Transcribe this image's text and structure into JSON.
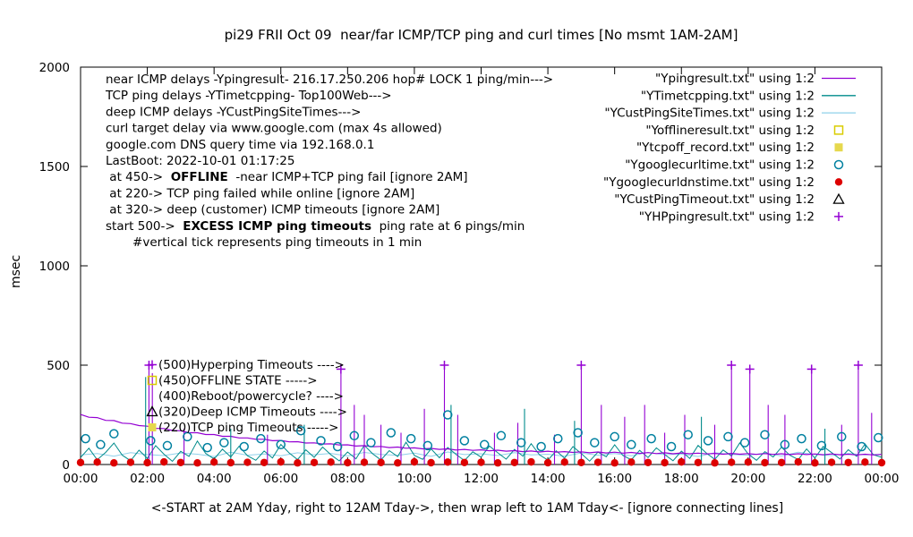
{
  "chart_data": {
    "type": "line",
    "title": "pi29 FRII Oct 09  near/far ICMP/TCP ping and curl times [No msmt 1AM-2AM]",
    "xlabel": "<-START at 2AM Yday, right to 12AM Tday->, then wrap left to 1AM Tday<- [ignore connecting lines]",
    "ylabel": "msec",
    "ylim": [
      0,
      2000
    ],
    "yticks": [
      0,
      500,
      1000,
      1500,
      2000
    ],
    "xlim_hours": [
      0,
      24
    ],
    "xticks_hours": [
      0,
      2,
      4,
      6,
      8,
      10,
      12,
      14,
      16,
      18,
      20,
      22,
      24
    ],
    "xtick_labels": [
      "00:00",
      "02:00",
      "04:00",
      "06:00",
      "08:00",
      "10:00",
      "12:00",
      "14:00",
      "16:00",
      "18:00",
      "20:00",
      "22:00",
      "00:00"
    ],
    "grid": false,
    "legend_position": "top-right-inside",
    "series": [
      {
        "key": "YCustPingSiteTimes",
        "name": "YCustPingSiteTimes.txt",
        "kind": "line",
        "color": "#8fd0ea",
        "width": 1,
        "start": 0,
        "step": 0.5,
        "values": [
          48,
          55,
          42,
          60,
          50,
          45,
          58,
          52,
          40,
          62,
          47,
          53,
          44,
          59,
          49,
          56,
          43,
          61,
          51,
          46,
          57,
          41,
          63,
          50,
          54,
          45,
          60,
          48,
          52,
          42,
          58,
          47,
          55,
          44,
          61,
          49,
          53,
          40,
          59,
          51,
          46,
          57,
          43,
          62,
          50,
          45,
          56,
          48,
          52
        ]
      },
      {
        "key": "YTimetcpping",
        "name": "YTimetcpping.txt",
        "kind": "line",
        "color": "#008b8b",
        "width": 1,
        "start": 0,
        "step": 0.25,
        "values": [
          35,
          82,
          24,
          61,
          108,
          47,
          19,
          72,
          31,
          95,
          52,
          16,
          66,
          41,
          118,
          56,
          28,
          77,
          38,
          92,
          44,
          21,
          68,
          33,
          101,
          58,
          25,
          74,
          36,
          88,
          49,
          18,
          63,
          29,
          97,
          54,
          23,
          70,
          40,
          112,
          46,
          26,
          79,
          34,
          86,
          51,
          20,
          64,
          37,
          93,
          59,
          27,
          76,
          42,
          105,
          48,
          22,
          69,
          32,
          90,
          55,
          17,
          62,
          39,
          99,
          45,
          24,
          71,
          35,
          84,
          50,
          19,
          67,
          30,
          96,
          57,
          26,
          73,
          43,
          109,
          53,
          21,
          65,
          38,
          87,
          47,
          25,
          78,
          33,
          91,
          60,
          28,
          75,
          41,
          103,
          49,
          36
        ]
      },
      {
        "key": "Ypingresult",
        "name": "Ypingresult.txt",
        "kind": "line",
        "color": "#9400d3",
        "width": 1.2,
        "start": 0,
        "step": 0.25,
        "values": [
          252,
          238,
          236,
          222,
          221,
          208,
          206,
          196,
          193,
          182,
          181,
          171,
          170,
          160,
          160,
          151,
          151,
          142,
          142,
          134,
          134,
          127,
          127,
          120,
          121,
          114,
          115,
          108,
          109,
          103,
          104,
          98,
          99,
          93,
          95,
          89,
          91,
          85,
          88,
          82,
          84,
          79,
          81,
          76,
          79,
          73,
          76,
          71,
          74,
          69,
          72,
          67,
          70,
          65,
          68,
          63,
          67,
          62,
          65,
          61,
          64,
          59,
          63,
          58,
          62,
          57,
          61,
          56,
          60,
          55,
          59,
          54,
          58,
          54,
          57,
          53,
          56,
          52,
          56,
          52,
          55,
          51,
          55,
          51,
          54,
          50,
          54,
          50,
          53,
          49,
          53,
          49,
          52,
          48,
          52,
          48,
          51
        ]
      },
      {
        "key": "tcp-timeout-spikes",
        "name": "TCP timeout spikes",
        "kind": "vlines",
        "color": "#008b8b",
        "points": [
          [
            1.95,
            440
          ],
          [
            4.5,
            180
          ],
          [
            6.7,
            200
          ],
          [
            11.1,
            300
          ],
          [
            13.3,
            280
          ],
          [
            14.8,
            220
          ],
          [
            18.6,
            240
          ],
          [
            22.3,
            180
          ]
        ]
      },
      {
        "key": "ping-timeout-spikes",
        "name": "ICMP ping timeout spikes",
        "kind": "vlines",
        "color": "#9400d3",
        "points": [
          [
            2.05,
            500
          ],
          [
            2.15,
            460
          ],
          [
            3.1,
            180
          ],
          [
            5.6,
            150
          ],
          [
            7.8,
            480
          ],
          [
            8.2,
            300
          ],
          [
            8.5,
            250
          ],
          [
            9.0,
            200
          ],
          [
            9.6,
            160
          ],
          [
            10.3,
            280
          ],
          [
            10.9,
            500
          ],
          [
            11.3,
            250
          ],
          [
            12.4,
            160
          ],
          [
            13.1,
            210
          ],
          [
            14.2,
            150
          ],
          [
            15.0,
            500
          ],
          [
            15.6,
            300
          ],
          [
            16.3,
            240
          ],
          [
            16.9,
            300
          ],
          [
            17.5,
            160
          ],
          [
            18.1,
            250
          ],
          [
            19.0,
            200
          ],
          [
            19.5,
            500
          ],
          [
            20.05,
            480
          ],
          [
            20.6,
            300
          ],
          [
            21.1,
            250
          ],
          [
            21.9,
            480
          ],
          [
            22.8,
            200
          ],
          [
            23.3,
            500
          ],
          [
            23.7,
            260
          ]
        ]
      },
      {
        "key": "Ygooglecurltime",
        "name": "Ygooglecurltime.txt",
        "kind": "circle-open",
        "color": "#0080a0",
        "points": [
          [
            0.15,
            130
          ],
          [
            0.6,
            100
          ],
          [
            1.0,
            155
          ],
          [
            2.1,
            120
          ],
          [
            2.6,
            95
          ],
          [
            3.2,
            140
          ],
          [
            3.8,
            85
          ],
          [
            4.3,
            110
          ],
          [
            4.9,
            90
          ],
          [
            5.4,
            130
          ],
          [
            6.0,
            100
          ],
          [
            6.6,
            170
          ],
          [
            7.2,
            120
          ],
          [
            7.7,
            90
          ],
          [
            8.2,
            145
          ],
          [
            8.7,
            110
          ],
          [
            9.3,
            160
          ],
          [
            9.9,
            130
          ],
          [
            10.4,
            95
          ],
          [
            11.0,
            250
          ],
          [
            11.5,
            120
          ],
          [
            12.1,
            100
          ],
          [
            12.6,
            145
          ],
          [
            13.2,
            110
          ],
          [
            13.8,
            90
          ],
          [
            14.3,
            130
          ],
          [
            14.9,
            160
          ],
          [
            15.4,
            110
          ],
          [
            16.0,
            140
          ],
          [
            16.5,
            100
          ],
          [
            17.1,
            130
          ],
          [
            17.7,
            90
          ],
          [
            18.2,
            150
          ],
          [
            18.8,
            120
          ],
          [
            19.4,
            140
          ],
          [
            19.9,
            110
          ],
          [
            20.5,
            150
          ],
          [
            21.1,
            100
          ],
          [
            21.6,
            130
          ],
          [
            22.2,
            95
          ],
          [
            22.8,
            140
          ],
          [
            23.4,
            90
          ],
          [
            23.9,
            135
          ]
        ]
      },
      {
        "key": "Ygooglecurldnstime",
        "name": "Ygooglecurldnstime.txt",
        "kind": "circle-fill",
        "color": "#dd0000",
        "start": 0,
        "step": 0.5,
        "values": [
          10,
          12,
          8,
          11,
          9,
          13,
          10,
          8,
          12,
          9,
          11,
          10,
          13,
          8,
          10,
          12,
          9,
          11,
          10,
          8,
          13,
          9,
          12,
          10,
          11,
          8,
          10,
          13,
          9,
          12,
          10,
          11,
          8,
          12,
          10,
          9,
          13,
          10,
          8,
          11,
          12,
          9,
          10,
          13,
          8,
          11,
          10,
          12,
          9
        ]
      },
      {
        "key": "YHPpingresult",
        "name": "YHPpingresult.txt",
        "kind": "plus",
        "color": "#9400d3",
        "points": [
          [
            2.05,
            500
          ],
          [
            7.8,
            480
          ],
          [
            10.9,
            500
          ],
          [
            15.0,
            500
          ],
          [
            19.5,
            500
          ],
          [
            20.05,
            480
          ],
          [
            21.9,
            480
          ],
          [
            23.3,
            500
          ]
        ]
      }
    ]
  },
  "legend": {
    "entries": [
      {
        "label": "\"Ypingresult.txt\" using 1:2",
        "marker": "line",
        "color": "#9400d3"
      },
      {
        "label": "\"YTimetcpping.txt\" using 1:2",
        "marker": "line",
        "color": "#008b8b"
      },
      {
        "label": "\"YCustPingSiteTimes.txt\" using 1:2",
        "marker": "line",
        "color": "#8fd0ea"
      },
      {
        "label": "\"Yofflineresult.txt\" using 1:2",
        "marker": "square-open",
        "color": "#d9cc00"
      },
      {
        "label": "\"Ytcpoff_record.txt\" using 1:2",
        "marker": "square-fill",
        "color": "#e6d84d"
      },
      {
        "label": "\"Ygooglecurltime.txt\" using 1:2",
        "marker": "circle-open",
        "color": "#0080a0"
      },
      {
        "label": "\"Ygooglecurldnstime.txt\" using 1:2",
        "marker": "circle-fill",
        "color": "#dd0000"
      },
      {
        "label": "\"YCustPingTimeout.txt\" using 1:2",
        "marker": "triangle-open",
        "color": "#000000"
      },
      {
        "label": "\"YHPpingresult.txt\" using 1:2",
        "marker": "plus",
        "color": "#9400d3"
      }
    ]
  },
  "annotations": {
    "info_lines": [
      {
        "pre": "near ICMP delays -Ypingresult- 216.17.250.206 hop# LOCK 1 ping/min--->"
      },
      {
        "pre": "TCP ping delays -YTimetcpping- Top100Web--->"
      },
      {
        "pre": "deep ICMP delays -YCustPingSiteTimes--->"
      },
      {
        "pre": "curl target delay via www.google.com (max 4s allowed)"
      },
      {
        "pre": "google.com DNS query time via 192.168.0.1"
      },
      {
        "pre": "LastBoot: 2022-10-01 01:17:25"
      },
      {
        "pre": " at 450->  ",
        "bold": "OFFLINE",
        "post": "  -near ICMP+TCP ping fail [ignore 2AM]"
      },
      {
        "pre": " at 220-> TCP ping failed while online [ignore 2AM]"
      },
      {
        "pre": " at 320-> deep (customer) ICMP timeouts [ignore 2AM]"
      },
      {
        "pre": "start 500->  ",
        "bold": "EXCESS ICMP ping timeouts",
        "post": "  ping rate at 6 pings/min"
      },
      {
        "pre": "       #vertical tick represents ping timeouts in 1 min"
      }
    ],
    "level_labels": [
      {
        "text": "(500)Hyperping Timeouts ---->",
        "symbol": "plus",
        "color": "#9400d3"
      },
      {
        "text": "(450)OFFLINE STATE ----->",
        "symbol": "square-open",
        "color": "#d9cc00"
      },
      {
        "text": "(400)Reboot/powercycle? ---->",
        "symbol": "none",
        "color": "#000000"
      },
      {
        "text": "(320)Deep ICMP Timeouts ---->",
        "symbol": "triangle-open",
        "color": "#000000"
      },
      {
        "text": "(220)TCP ping Timeouts ----->",
        "symbol": "square-fill",
        "color": "#e6d84d"
      }
    ]
  }
}
